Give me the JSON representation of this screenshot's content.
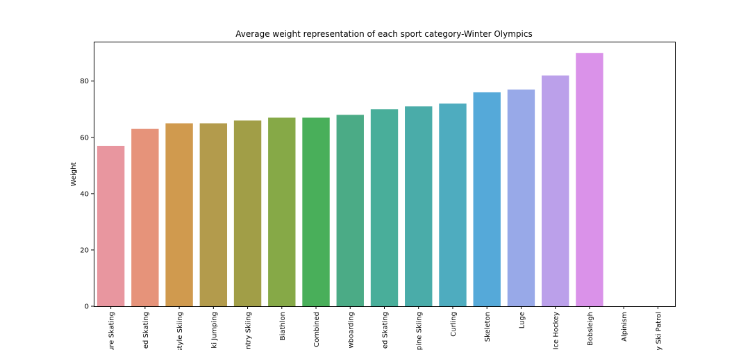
{
  "chart_data": {
    "type": "bar",
    "title": "Average weight representation of each sport category-Winter Olympics",
    "xlabel": "",
    "ylabel": "Weight",
    "ylim": [
      0,
      94
    ],
    "yticks": [
      0,
      20,
      40,
      60,
      80
    ],
    "grid": false,
    "categories": [
      "ure Skating",
      "ed Skating",
      "style Skiing",
      "ki Jumping",
      "ntry Skiing",
      "Biathlon",
      "Combined",
      "wboarding",
      "ed Skating",
      "pine Skiing",
      "Curling",
      "Skeleton",
      "Luge",
      "Ice Hockey",
      "Bobsleigh",
      "Alpinism",
      "y Ski Patrol"
    ],
    "values": [
      57,
      63,
      65,
      65,
      66,
      67,
      67,
      68,
      70,
      71,
      72,
      76,
      77,
      82,
      90,
      0,
      0
    ],
    "colors": [
      "#e8969f",
      "#e6937a",
      "#d09a4e",
      "#b39b4c",
      "#a19e47",
      "#86a947",
      "#49af5a",
      "#4bab86",
      "#49ae9a",
      "#4aaca9",
      "#4eacbf",
      "#55a9d9",
      "#98a9e8",
      "#bba0ea",
      "#da92e9",
      "#e48fd3",
      "#e891bb"
    ]
  }
}
